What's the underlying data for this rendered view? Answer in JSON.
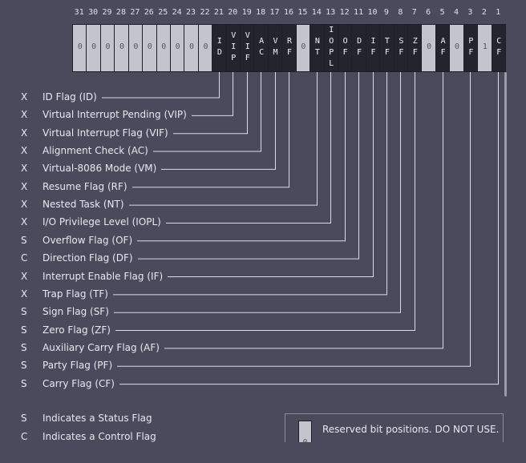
{
  "bits": [
    31,
    30,
    29,
    28,
    27,
    26,
    25,
    24,
    23,
    22,
    21,
    20,
    19,
    18,
    17,
    16,
    15,
    14,
    13,
    12,
    11,
    10,
    9,
    8,
    7,
    6,
    5,
    4,
    3,
    2,
    1
  ],
  "cells": [
    "0",
    "0",
    "0",
    "0",
    "0",
    "0",
    "0",
    "0",
    "0",
    "0",
    "ID",
    "VIP",
    "VIF",
    "AC",
    "VM",
    "RF",
    "0",
    "NT",
    "IOPL",
    "OF",
    "DF",
    "IF",
    "TF",
    "SF",
    "ZF",
    "0",
    "AF",
    "0",
    "PF",
    "1",
    "CF"
  ],
  "flags": [
    {
      "kind": "X",
      "name": "ID Flag (ID)"
    },
    {
      "kind": "X",
      "name": "Virtual Interrupt Pending (VIP)"
    },
    {
      "kind": "X",
      "name": "Virtual Interrupt Flag (VIF)"
    },
    {
      "kind": "X",
      "name": "Alignment Check (AC)"
    },
    {
      "kind": "X",
      "name": "Virtual-8086 Mode (VM)"
    },
    {
      "kind": "X",
      "name": "Resume Flag (RF)"
    },
    {
      "kind": "X",
      "name": "Nested Task (NT)"
    },
    {
      "kind": "X",
      "name": "I/O Privilege Level (IOPL)"
    },
    {
      "kind": "S",
      "name": "Overflow Flag (OF)"
    },
    {
      "kind": "C",
      "name": "Direction Flag (DF)"
    },
    {
      "kind": "X",
      "name": "Interrupt Enable Flag (IF)"
    },
    {
      "kind": "X",
      "name": "Trap Flag  (TF)"
    },
    {
      "kind": "S",
      "name": "Sign Flag (SF)"
    },
    {
      "kind": "S",
      "name": "Zero Flag (ZF)"
    },
    {
      "kind": "S",
      "name": "Auxiliary Carry Flag (AF)"
    },
    {
      "kind": "S",
      "name": "Party Flag (PF)"
    },
    {
      "kind": "S",
      "name": "Carry Flag (CF)"
    }
  ],
  "legend": [
    {
      "kind": "S",
      "text": "Indicates a Status Flag"
    },
    {
      "kind": "C",
      "text": "Indicates a Control Flag"
    }
  ],
  "note": {
    "sample": "0",
    "text": "Reserved bit positions. DO NOT USE."
  }
}
